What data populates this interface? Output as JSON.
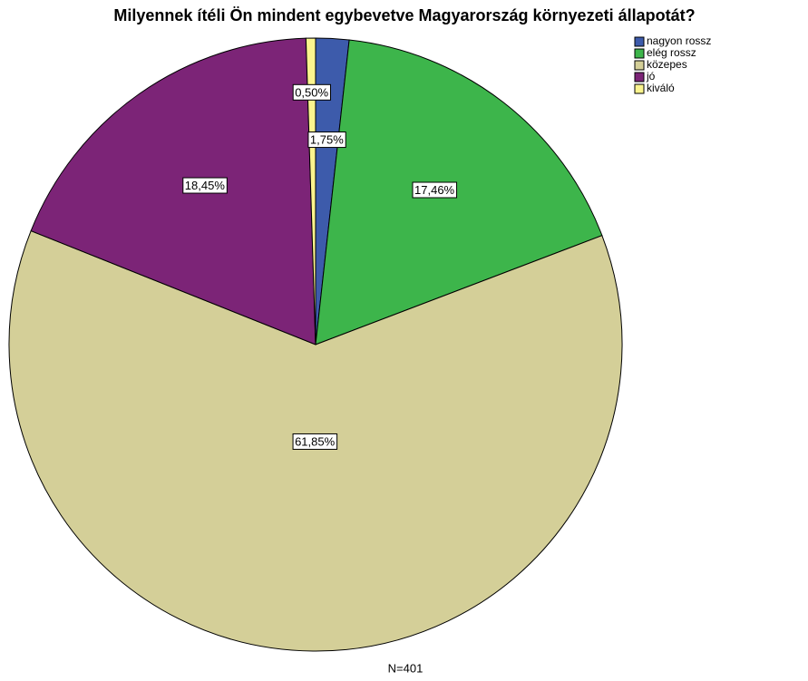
{
  "chart_data": {
    "type": "pie",
    "title": "Milyennek ítéli Ön mindent egybevetve Magyarország környezeti állapotát?",
    "categories": [
      "nagyon rossz",
      "elég rossz",
      "közepes",
      "jó",
      "kiváló"
    ],
    "values": [
      1.75,
      17.46,
      61.85,
      18.45,
      0.5
    ],
    "value_labels": [
      "1,75%",
      "17,46%",
      "61,85%",
      "18,45%",
      "0,50%"
    ],
    "colors": [
      "#3d5bab",
      "#3db54b",
      "#d4cf98",
      "#7c2477",
      "#fbf48e"
    ],
    "annotation": "N=401",
    "legend": "top-right"
  }
}
